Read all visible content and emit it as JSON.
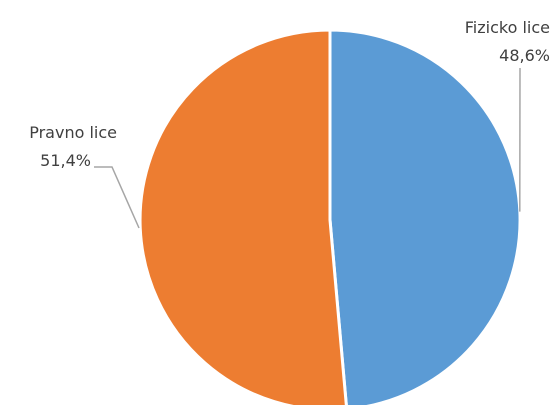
{
  "chart_data": {
    "type": "pie",
    "title": "",
    "slices": [
      {
        "label": "Fizicko lice",
        "value": 48.6,
        "value_label": "48,6%",
        "color": "#5b9bd5"
      },
      {
        "label": "Pravno lice",
        "value": 51.4,
        "value_label": "51,4%",
        "color": "#ed7d31"
      }
    ],
    "start_angle_deg": 0,
    "direction": "clockwise",
    "legend": "none",
    "data_labels": "outside with leader lines"
  }
}
